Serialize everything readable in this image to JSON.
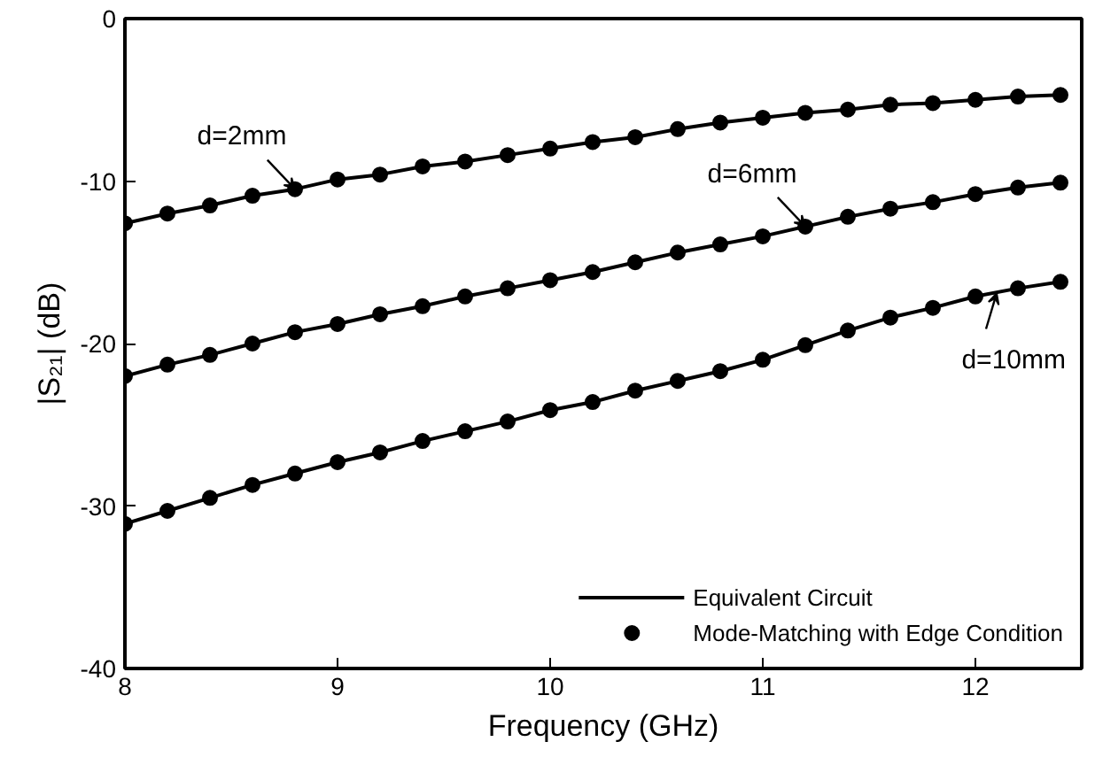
{
  "chart_data": {
    "type": "line",
    "xlabel": "Frequency (GHz)",
    "ylabel": "|S₂₁| (dB)",
    "x": [
      8,
      8.2,
      8.4,
      8.6,
      8.8,
      9,
      9.2,
      9.4,
      9.6,
      9.8,
      10,
      10.2,
      10.4,
      10.6,
      10.8,
      11,
      11.2,
      11.4,
      11.6,
      11.8,
      12,
      12.2,
      12.4
    ],
    "xlim": [
      8,
      12.5
    ],
    "xticks": [
      8,
      9,
      10,
      11,
      12
    ],
    "ylim": [
      -40,
      0
    ],
    "yticks": [
      -40,
      -30,
      -20,
      -10,
      0
    ],
    "grid": false,
    "legend": "bottom right",
    "series": [
      {
        "name": "Equivalent Circuit",
        "color": "#000000",
        "marker": "none",
        "values": [
          -12.6,
          -12.0,
          -11.5,
          -10.9,
          -10.5,
          -9.9,
          -9.6,
          -9.1,
          -8.8,
          -8.4,
          -8.0,
          -7.6,
          -7.3,
          -6.8,
          -6.4,
          -6.1,
          -5.8,
          -5.6,
          -5.3,
          -5.2,
          -5.0,
          -4.8,
          -4.7
        ]
      },
      {
        "color": "#000000",
        "marker": "none",
        "values": [
          -22.0,
          -21.3,
          -20.7,
          -20.0,
          -19.3,
          -18.8,
          -18.2,
          -17.7,
          -17.1,
          -16.6,
          -16.1,
          -15.6,
          -15.0,
          -14.4,
          -13.9,
          -13.4,
          -12.8,
          -12.2,
          -11.7,
          -11.3,
          -10.8,
          -10.4,
          -10.1
        ]
      },
      {
        "color": "#000000",
        "marker": "none",
        "values": [
          -31.1,
          -30.3,
          -29.5,
          -28.7,
          -28.0,
          -27.3,
          -26.7,
          -26.0,
          -25.4,
          -24.8,
          -24.1,
          -23.6,
          -22.9,
          -22.3,
          -21.7,
          -21.0,
          -20.1,
          -19.2,
          -18.4,
          -17.8,
          -17.1,
          -16.6,
          -16.2
        ]
      },
      {
        "type": "scatter",
        "name": "Mode-Matching with Edge Condition",
        "color": "#000000",
        "marker": "circle",
        "values": [
          -12.6,
          -12.0,
          -11.5,
          -10.9,
          -10.5,
          -9.9,
          -9.6,
          -9.1,
          -8.8,
          -8.4,
          -8.0,
          -7.6,
          -7.3,
          -6.8,
          -6.4,
          -6.1,
          -5.8,
          -5.6,
          -5.3,
          -5.2,
          -5.0,
          -4.8,
          -4.7
        ]
      },
      {
        "type": "scatter",
        "color": "#000000",
        "marker": "circle",
        "values": [
          -22.0,
          -21.3,
          -20.7,
          -20.0,
          -19.3,
          -18.8,
          -18.2,
          -17.7,
          -17.1,
          -16.6,
          -16.1,
          -15.6,
          -15.0,
          -14.4,
          -13.9,
          -13.4,
          -12.8,
          -12.2,
          -11.7,
          -11.3,
          -10.8,
          -10.4,
          -10.1
        ]
      },
      {
        "type": "scatter",
        "color": "#000000",
        "marker": "circle",
        "values": [
          -31.1,
          -30.3,
          -29.5,
          -28.7,
          -28.0,
          -27.3,
          -26.7,
          -26.0,
          -25.4,
          -24.8,
          -24.1,
          -23.6,
          -22.9,
          -22.3,
          -21.7,
          -21.0,
          -20.1,
          -19.2,
          -18.4,
          -17.8,
          -17.1,
          -16.6,
          -16.2
        ]
      }
    ],
    "annotations": [
      {
        "text": "d=2mm",
        "x": 8.8,
        "y": -10.5
      },
      {
        "text": "d=6mm",
        "x": 11.2,
        "y": -12.8
      },
      {
        "text": "d=10mm",
        "x": 12.1,
        "y": -16.9
      }
    ]
  }
}
